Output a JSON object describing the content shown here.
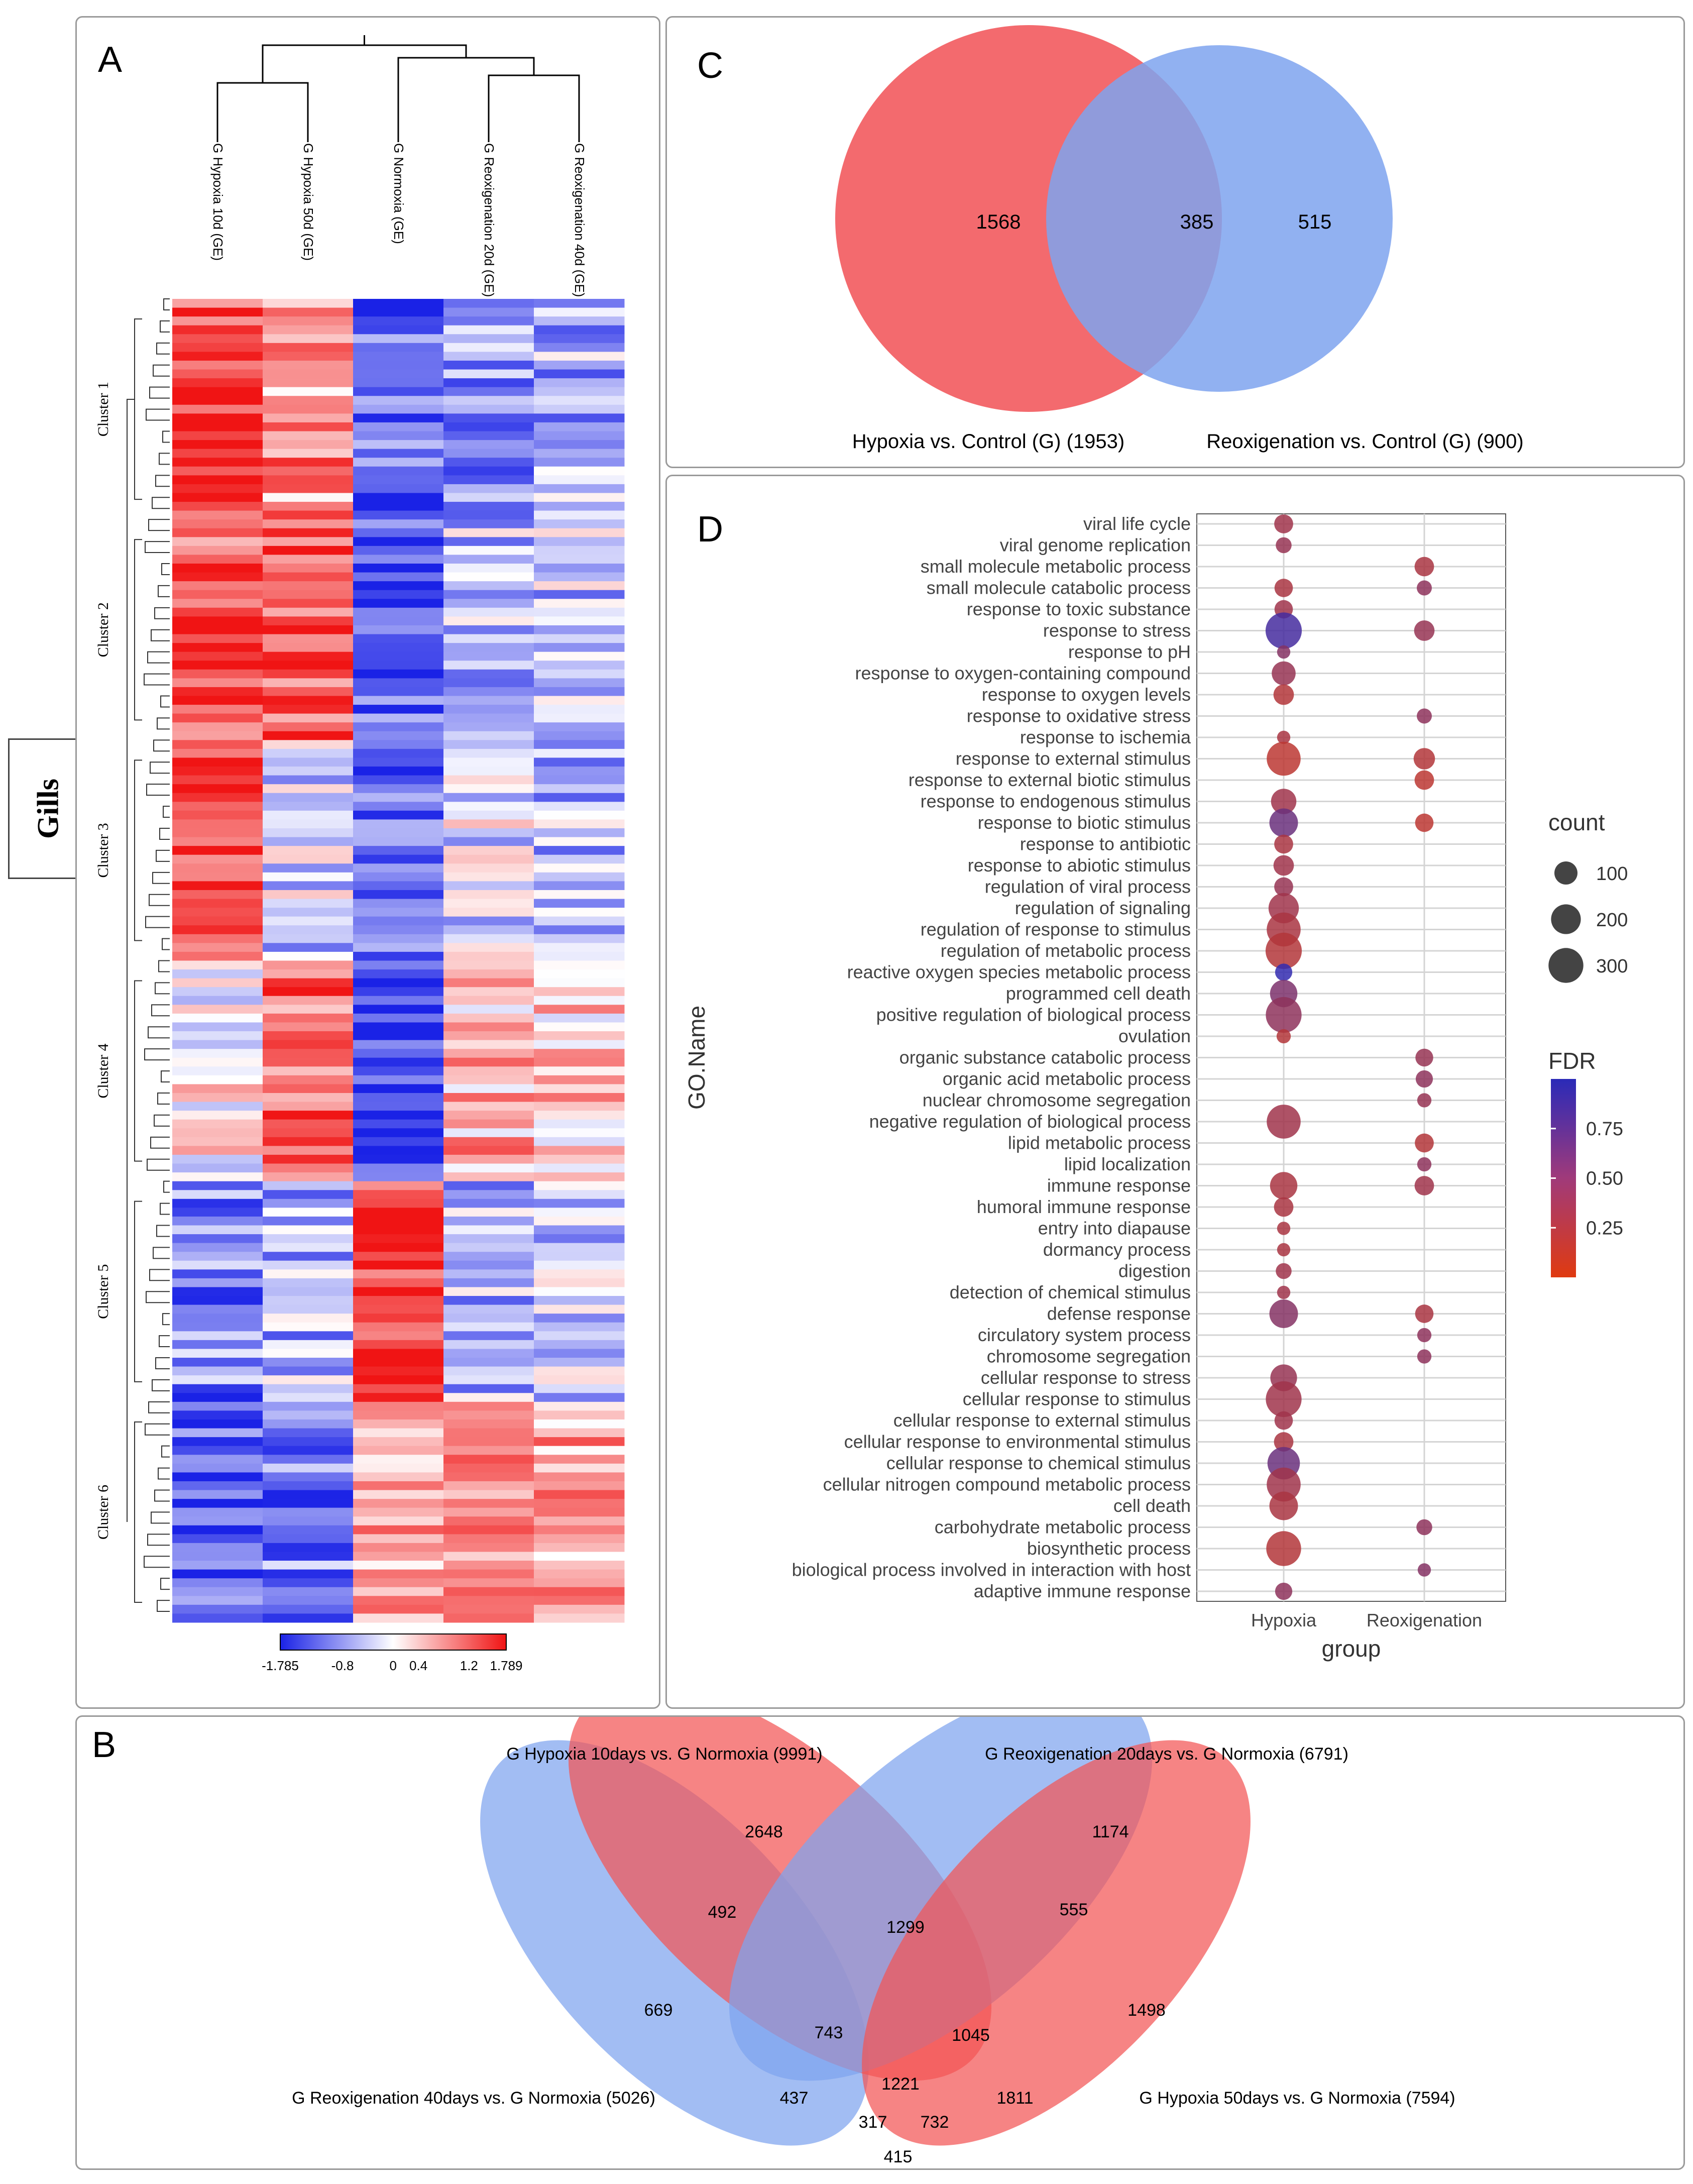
{
  "figure": {
    "side_label": "Gills",
    "panel_letters": [
      "A",
      "B",
      "C",
      "D"
    ]
  },
  "chart_data": [
    {
      "type": "heatmap",
      "panel": "A",
      "columns": [
        "G Hypoxia 10d (GE)",
        "G Hypoxia 50d (GE)",
        "G Normoxia (GE)",
        "G Reoxigenation 20d (GE)",
        "G Reoxigenation 40d (GE)"
      ],
      "clusters": [
        "Cluster 1",
        "Cluster 2",
        "Cluster 3",
        "Cluster 4",
        "Cluster 5",
        "Cluster 6"
      ],
      "cluster_pattern": [
        [
          0.85,
          0.45,
          -0.7,
          -0.45,
          -0.35
        ],
        [
          0.75,
          0.7,
          -0.75,
          -0.3,
          -0.25
        ],
        [
          0.9,
          -0.2,
          -0.7,
          -0.15,
          -0.3
        ],
        [
          0.05,
          0.6,
          -0.95,
          0.3,
          0.25
        ],
        [
          -0.55,
          -0.35,
          0.9,
          -0.3,
          -0.25
        ],
        [
          -0.75,
          -0.55,
          0.45,
          0.35,
          0.4
        ]
      ],
      "color_scale": {
        "low": "#1a22e6",
        "mid": "#ffffff",
        "high": "#f01414",
        "tick_labels": [
          "-1.785",
          "-0.8",
          "0",
          "0.4",
          "1.2",
          "1.789"
        ],
        "tick_values": [
          -1.785,
          -0.8,
          0,
          0.4,
          1.2,
          1.789
        ],
        "min": -1.785,
        "max": 1.789
      }
    },
    {
      "type": "venn",
      "panel": "B",
      "sets": [
        {
          "name": "G Hypoxia 10days vs. G Normoxia (9991)",
          "color": "#f25555"
        },
        {
          "name": "G Reoxigenation 20days vs. G Normoxia (6791)",
          "color": "#7ea3ee"
        },
        {
          "name": "G Reoxigenation 40days vs. G Normoxia (5026)",
          "color": "#7ea3ee"
        },
        {
          "name": "G Hypoxia 50days vs. G Normoxia (7594)",
          "color": "#f25555"
        }
      ],
      "regions": [
        "2648",
        "1174",
        "492",
        "1299",
        "555",
        "669",
        "743",
        "1045",
        "1498",
        "1221",
        "437",
        "1811",
        "317",
        "732",
        "415"
      ]
    },
    {
      "type": "venn",
      "panel": "C",
      "sets": [
        {
          "name": "Hypoxia vs. Control (G) (1953)",
          "color": "#f25a5e"
        },
        {
          "name": "Reoxigenation vs. Control (G) (900)",
          "color": "#7ea3ee"
        }
      ],
      "regions": {
        "only_a": "1568",
        "both": "385",
        "only_b": "515"
      }
    },
    {
      "type": "scatter",
      "panel": "D",
      "xlabel": "group",
      "ylabel": "GO.Name",
      "x_categories": [
        "Hypoxia",
        "Reoxigenation"
      ],
      "y_categories": [
        "viral life cycle",
        "viral genome replication",
        "small molecule metabolic process",
        "small molecule catabolic process",
        "response to toxic substance",
        "response to stress",
        "response to pH",
        "response to oxygen-containing compound",
        "response to oxygen levels",
        "response to oxidative stress",
        "response to ischemia",
        "response to external stimulus",
        "response to external biotic stimulus",
        "response to endogenous stimulus",
        "response to biotic stimulus",
        "response to antibiotic",
        "response to abiotic stimulus",
        "regulation of viral process",
        "regulation of signaling",
        "regulation of response to stimulus",
        "regulation of metabolic process",
        "reactive oxygen species metabolic process",
        "programmed cell death",
        "positive regulation of biological process",
        "ovulation",
        "organic substance catabolic process",
        "organic acid metabolic process",
        "nuclear chromosome segregation",
        "negative regulation of biological process",
        "lipid metabolic process",
        "lipid localization",
        "immune response",
        "humoral immune response",
        "entry into diapause",
        "dormancy process",
        "digestion",
        "detection of chemical stimulus",
        "defense response",
        "circulatory system process",
        "chromosome segregation",
        "cellular response to stress",
        "cellular response to stimulus",
        "cellular response to external stimulus",
        "cellular response to environmental stimulus",
        "cellular response to chemical stimulus",
        "cellular nitrogen compound metabolic process",
        "cell death",
        "carbohydrate metabolic process",
        "biosynthetic process",
        "biological process involved in interaction with host",
        "adaptive immune response"
      ],
      "points": [
        {
          "term": "viral life cycle",
          "group": "Hypoxia",
          "count": 55,
          "fdr": 0.35
        },
        {
          "term": "viral genome replication",
          "group": "Hypoxia",
          "count": 30,
          "fdr": 0.4
        },
        {
          "term": "small molecule metabolic process",
          "group": "Reoxigenation",
          "count": 60,
          "fdr": 0.3
        },
        {
          "term": "small molecule catabolic process",
          "group": "Hypoxia",
          "count": 50,
          "fdr": 0.3
        },
        {
          "term": "small molecule catabolic process",
          "group": "Reoxigenation",
          "count": 25,
          "fdr": 0.45
        },
        {
          "term": "response to toxic substance",
          "group": "Hypoxia",
          "count": 50,
          "fdr": 0.35
        },
        {
          "term": "response to stress",
          "group": "Hypoxia",
          "count": 330,
          "fdr": 0.85
        },
        {
          "term": "response to stress",
          "group": "Reoxigenation",
          "count": 70,
          "fdr": 0.4
        },
        {
          "term": "response to pH",
          "group": "Hypoxia",
          "count": 15,
          "fdr": 0.5
        },
        {
          "term": "response to oxygen-containing compound",
          "group": "Hypoxia",
          "count": 110,
          "fdr": 0.4
        },
        {
          "term": "response to oxygen levels",
          "group": "Hypoxia",
          "count": 70,
          "fdr": 0.25
        },
        {
          "term": "response to oxidative stress",
          "group": "Reoxigenation",
          "count": 25,
          "fdr": 0.45
        },
        {
          "term": "response to ischemia",
          "group": "Hypoxia",
          "count": 15,
          "fdr": 0.3
        },
        {
          "term": "response to external stimulus",
          "group": "Hypoxia",
          "count": 280,
          "fdr": 0.2
        },
        {
          "term": "response to external stimulus",
          "group": "Reoxigenation",
          "count": 80,
          "fdr": 0.25
        },
        {
          "term": "response to external biotic stimulus",
          "group": "Reoxigenation",
          "count": 60,
          "fdr": 0.2
        },
        {
          "term": "response to endogenous stimulus",
          "group": "Hypoxia",
          "count": 130,
          "fdr": 0.35
        },
        {
          "term": "response to biotic stimulus",
          "group": "Hypoxia",
          "count": 180,
          "fdr": 0.65
        },
        {
          "term": "response to biotic stimulus",
          "group": "Reoxigenation",
          "count": 50,
          "fdr": 0.2
        },
        {
          "term": "response to antibiotic",
          "group": "Hypoxia",
          "count": 55,
          "fdr": 0.3
        },
        {
          "term": "response to abiotic stimulus",
          "group": "Hypoxia",
          "count": 70,
          "fdr": 0.35
        },
        {
          "term": "regulation of viral process",
          "group": "Hypoxia",
          "count": 55,
          "fdr": 0.4
        },
        {
          "term": "regulation of signaling",
          "group": "Hypoxia",
          "count": 210,
          "fdr": 0.35
        },
        {
          "term": "regulation of response to stimulus",
          "group": "Hypoxia",
          "count": 280,
          "fdr": 0.3
        },
        {
          "term": "regulation of metabolic process",
          "group": "Hypoxia",
          "count": 330,
          "fdr": 0.25
        },
        {
          "term": "reactive oxygen species metabolic process",
          "group": "Hypoxia",
          "count": 40,
          "fdr": 0.95
        },
        {
          "term": "programmed cell death",
          "group": "Hypoxia",
          "count": 160,
          "fdr": 0.55
        },
        {
          "term": "positive regulation of biological process",
          "group": "Hypoxia",
          "count": 320,
          "fdr": 0.45
        },
        {
          "term": "ovulation",
          "group": "Hypoxia",
          "count": 20,
          "fdr": 0.25
        },
        {
          "term": "organic substance catabolic process",
          "group": "Reoxigenation",
          "count": 45,
          "fdr": 0.4
        },
        {
          "term": "organic acid metabolic process",
          "group": "Reoxigenation",
          "count": 40,
          "fdr": 0.45
        },
        {
          "term": "nuclear chromosome segregation",
          "group": "Reoxigenation",
          "count": 20,
          "fdr": 0.4
        },
        {
          "term": "negative regulation of biological process",
          "group": "Hypoxia",
          "count": 280,
          "fdr": 0.35
        },
        {
          "term": "lipid metabolic process",
          "group": "Reoxigenation",
          "count": 55,
          "fdr": 0.25
        },
        {
          "term": "lipid localization",
          "group": "Reoxigenation",
          "count": 20,
          "fdr": 0.45
        },
        {
          "term": "immune response",
          "group": "Hypoxia",
          "count": 160,
          "fdr": 0.3
        },
        {
          "term": "immune response",
          "group": "Reoxigenation",
          "count": 60,
          "fdr": 0.35
        },
        {
          "term": "humoral immune response",
          "group": "Hypoxia",
          "count": 60,
          "fdr": 0.3
        },
        {
          "term": "entry into diapause",
          "group": "Hypoxia",
          "count": 15,
          "fdr": 0.3
        },
        {
          "term": "dormancy process",
          "group": "Hypoxia",
          "count": 15,
          "fdr": 0.3
        },
        {
          "term": "digestion",
          "group": "Hypoxia",
          "count": 30,
          "fdr": 0.35
        },
        {
          "term": "detection of chemical stimulus",
          "group": "Hypoxia",
          "count": 15,
          "fdr": 0.35
        },
        {
          "term": "defense response",
          "group": "Hypoxia",
          "count": 180,
          "fdr": 0.5
        },
        {
          "term": "defense response",
          "group": "Reoxigenation",
          "count": 50,
          "fdr": 0.3
        },
        {
          "term": "circulatory system process",
          "group": "Reoxigenation",
          "count": 20,
          "fdr": 0.45
        },
        {
          "term": "chromosome segregation",
          "group": "Reoxigenation",
          "count": 20,
          "fdr": 0.45
        },
        {
          "term": "cellular response to stress",
          "group": "Hypoxia",
          "count": 150,
          "fdr": 0.4
        },
        {
          "term": "cellular response to stimulus",
          "group": "Hypoxia",
          "count": 320,
          "fdr": 0.35
        },
        {
          "term": "cellular response to external stimulus",
          "group": "Hypoxia",
          "count": 50,
          "fdr": 0.35
        },
        {
          "term": "cellular response to environmental stimulus",
          "group": "Hypoxia",
          "count": 60,
          "fdr": 0.3
        },
        {
          "term": "cellular response to chemical stimulus",
          "group": "Hypoxia",
          "count": 250,
          "fdr": 0.65
        },
        {
          "term": "cellular nitrogen compound metabolic process",
          "group": "Hypoxia",
          "count": 280,
          "fdr": 0.35
        },
        {
          "term": "cell death",
          "group": "Hypoxia",
          "count": 180,
          "fdr": 0.3
        },
        {
          "term": "carbohydrate metabolic process",
          "group": "Reoxigenation",
          "count": 30,
          "fdr": 0.45
        },
        {
          "term": "biosynthetic process",
          "group": "Hypoxia",
          "count": 300,
          "fdr": 0.25
        },
        {
          "term": "biological process involved in interaction with host",
          "group": "Reoxigenation",
          "count": 15,
          "fdr": 0.5
        },
        {
          "term": "adaptive immune response",
          "group": "Hypoxia",
          "count": 40,
          "fdr": 0.45
        }
      ],
      "size_legend": {
        "title": "count",
        "values": [
          "100",
          "200",
          "300"
        ]
      },
      "color_legend": {
        "title": "FDR",
        "tick_labels": [
          "0.75",
          "0.50",
          "0.25"
        ],
        "tick_values": [
          0.75,
          0.5,
          0.25
        ],
        "range": [
          0.0,
          1.0
        ],
        "low_color": "#e03a10",
        "high_color": "#2a2ab8"
      }
    }
  ]
}
